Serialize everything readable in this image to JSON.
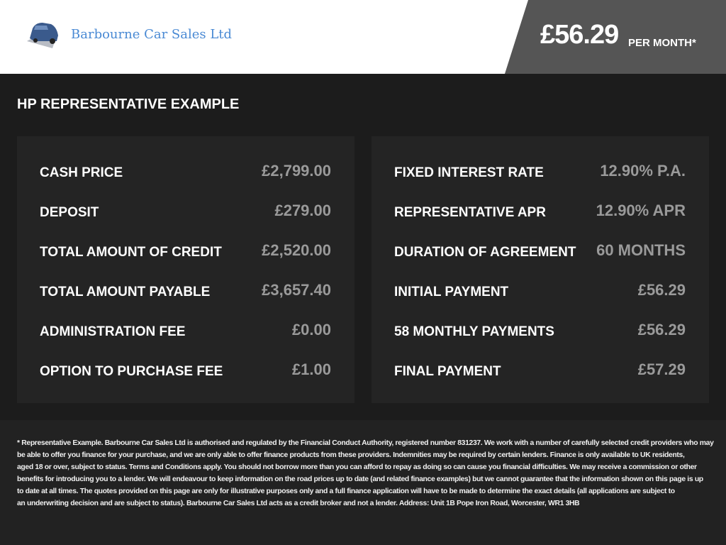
{
  "header": {
    "brand": "Barbourne Car Sales Ltd",
    "price": "£56.29",
    "price_suffix": "PER MONTH*",
    "accent": "#4a8ad4"
  },
  "section_title": "HP REPRESENTATIVE EXAMPLE",
  "left_rows": [
    {
      "label": "CASH PRICE",
      "value": "£2,799.00"
    },
    {
      "label": "DEPOSIT",
      "value": "£279.00"
    },
    {
      "label": "TOTAL AMOUNT OF CREDIT",
      "value": "£2,520.00"
    },
    {
      "label": "TOTAL AMOUNT PAYABLE",
      "value": "£3,657.40"
    },
    {
      "label": "ADMINISTRATION FEE",
      "value": "£0.00"
    },
    {
      "label": "OPTION TO PURCHASE FEE",
      "value": "£1.00"
    }
  ],
  "right_rows": [
    {
      "label": "FIXED INTEREST RATE",
      "value": "12.90% P.A."
    },
    {
      "label": "REPRESENTATIVE APR",
      "value": "12.90% APR"
    },
    {
      "label": "DURATION OF AGREEMENT",
      "value": "60 MONTHS"
    },
    {
      "label": "INITIAL PAYMENT",
      "value": "£56.29"
    },
    {
      "label": "58 MONTHLY PAYMENTS",
      "value": "£56.29"
    },
    {
      "label": "FINAL PAYMENT",
      "value": "£57.29"
    }
  ],
  "disclaimer_lines": [
    "* Representative Example. Barbourne Car Sales Ltd is authorised and regulated by the Financial Conduct Authority, registered number 831237. We work with a number of carefully selected credit providers who may",
    "be able to offer you finance for your purchase, and we are only able to offer finance products from these providers. Indemnities may be required by certain lenders. Finance is only available to UK residents,",
    "aged 18 or over, subject to status. Terms and Conditions apply. You should not borrow more than you can afford to repay as doing so can cause you financial difficulties. We may receive a commission or other",
    "benefits for introducing you to a lender. We will endeavour to keep information on the road prices up to date (and related finance examples) but we cannot guarantee that the information shown on this page is up",
    "to date at all times. The quotes provided on this page are only for illustrative purposes only and a full finance application will have to be made to determine the exact details (all applications are subject to",
    "an underwriting decision and are subject to status). Barbourne Car Sales Ltd acts as a credit broker and not a lender. Address: Unit 1B Pope Iron Road, Worcester, WR1 3HB"
  ]
}
